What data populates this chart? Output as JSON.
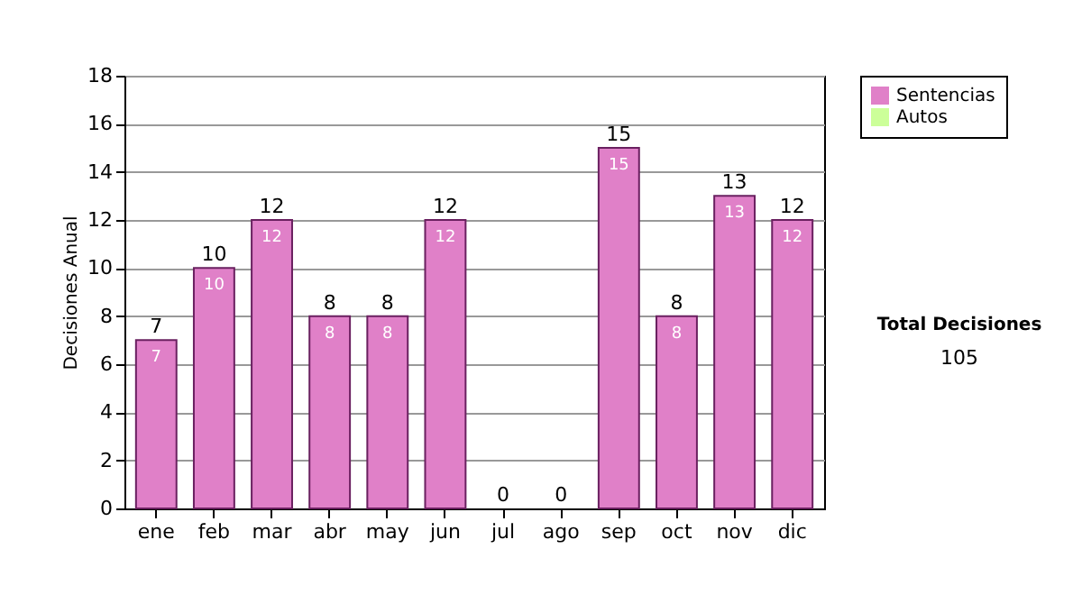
{
  "chart_data": {
    "type": "bar",
    "stacked": true,
    "ylabel": "Decisiones Anual",
    "categories": [
      "ene",
      "feb",
      "mar",
      "abr",
      "may",
      "jun",
      "jul",
      "ago",
      "sep",
      "oct",
      "nov",
      "dic"
    ],
    "series": [
      {
        "name": "Sentencias",
        "color": "#e080c8",
        "values": [
          7,
          10,
          12,
          8,
          8,
          12,
          0,
          0,
          15,
          8,
          13,
          12
        ],
        "value_labels": [
          "7",
          "10",
          "12",
          "8",
          "8",
          "12",
          null,
          null,
          "15",
          "8",
          "13",
          "12"
        ]
      },
      {
        "name": "Autos",
        "color": "#ccff99",
        "values": [
          0,
          0,
          0,
          0,
          0,
          0,
          0,
          0,
          0,
          0,
          0,
          0
        ]
      }
    ],
    "totals": [
      "7",
      "10",
      "12",
      "8",
      "8",
      "12",
      "0",
      "0",
      "15",
      "8",
      "13",
      "12"
    ],
    "ylim": [
      0,
      18
    ],
    "yticks": [
      0,
      2,
      4,
      6,
      8,
      10,
      12,
      14,
      16,
      18
    ],
    "grid": "y",
    "legend": "right",
    "annotations": [
      "Total Decisiones",
      "105"
    ]
  }
}
